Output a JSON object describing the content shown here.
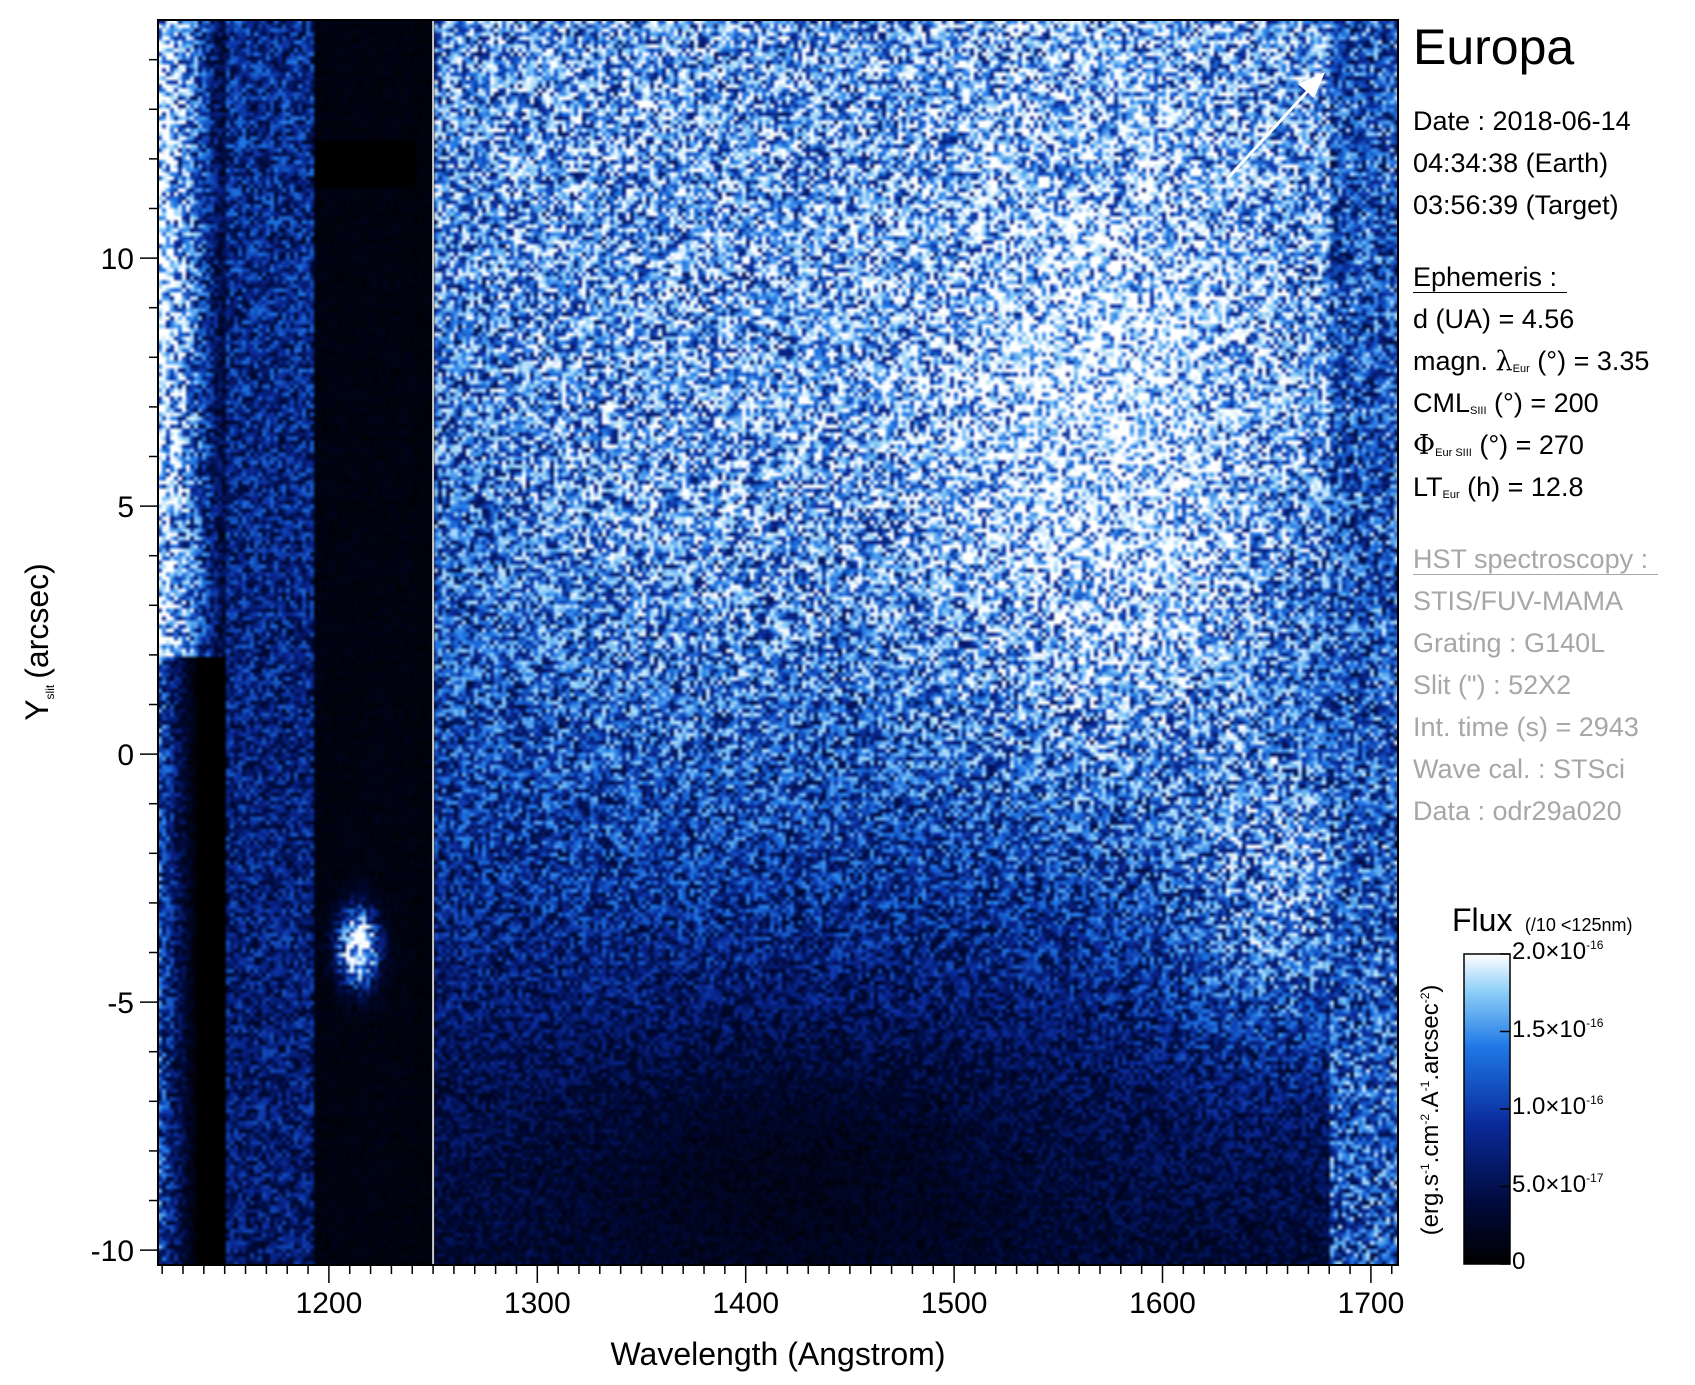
{
  "chart_data": {
    "type": "heatmap",
    "title": "Europa",
    "xlabel": "Wavelength (Angstrom)",
    "ylabel_main": "Y",
    "ylabel_sub": "slit",
    "ylabel_unit": "(arcsec)",
    "x_range": [
      1118,
      1713
    ],
    "y_range": [
      -10.3,
      14.8
    ],
    "x_ticks": [
      1200,
      1300,
      1400,
      1500,
      1600,
      1700
    ],
    "x_tick_labels": [
      "1200",
      "1300",
      "1400",
      "1500",
      "1600",
      "1700"
    ],
    "y_ticks": [
      -10,
      -5,
      0,
      5,
      10
    ],
    "y_tick_labels": [
      "-10",
      "-5",
      "0",
      "5",
      "10"
    ],
    "vertical_line_x": 1250,
    "colorbar": {
      "title": "Flux",
      "title_note": "(/10 <125nm)",
      "unit_label": "(erg.s-1.cm-2.A-1.arcsec-2)",
      "range": [
        0,
        2e-16
      ],
      "ticks": [
        0,
        5e-17,
        1e-16,
        1.5e-16,
        2e-16
      ],
      "tick_labels": [
        {
          "mant": "0",
          "exp": ""
        },
        {
          "mant": "5.0×10",
          "exp": "-17"
        },
        {
          "mant": "1.0×10",
          "exp": "-16"
        },
        {
          "mant": "1.5×10",
          "exp": "-16"
        },
        {
          "mant": "2.0×10",
          "exp": "-16"
        }
      ],
      "colors": [
        "#000000",
        "#000a3c",
        "#0a2a9a",
        "#1f78e6",
        "#8fcff8",
        "#ffffff"
      ]
    }
  },
  "info": {
    "date_line": "Date : 2018-06-14",
    "earth_time": "04:34:38 (Earth)",
    "target_time": "03:56:39 (Target)",
    "ephemeris_heading": "Ephemeris :",
    "d_label": "d (UA)     = 4.56",
    "magn_prefix": "magn. ",
    "magn_sym": "λ",
    "magn_sub": "Eur",
    "magn_rest": " (°)  = 3.35",
    "cml_prefix": "CML",
    "cml_sub": "SIII",
    "cml_rest": " (°) = 200",
    "phi_sym": "Φ",
    "phi_sub": "Eur SIII",
    "phi_rest": " (°) = 270",
    "lt_prefix": "LT",
    "lt_sub": "Eur",
    "lt_rest": " (h) = 12.8",
    "hst_heading": "HST spectroscopy :",
    "instrument": "STIS/FUV-MAMA",
    "grating": "Grating : G140L",
    "slit": "Slit (\") : 52X2",
    "int_time": "Int. time (s) = 2943",
    "wave_cal": "Wave cal. : STSci",
    "data_id": "Data : odr29a020"
  }
}
